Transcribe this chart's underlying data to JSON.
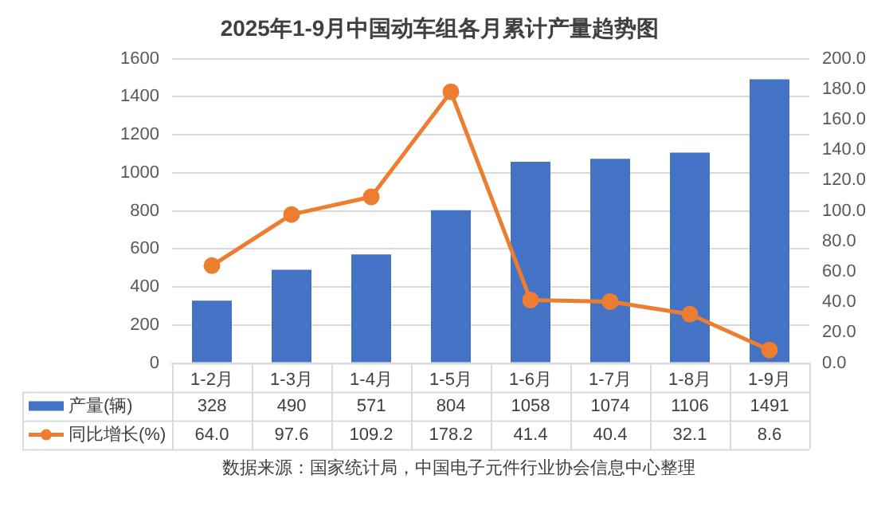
{
  "chart_data": {
    "type": "bar",
    "title": "2025年1-9月中国动车组各月累计产量趋势图",
    "categories": [
      "1-2月",
      "1-3月",
      "1-4月",
      "1-5月",
      "1-6月",
      "1-7月",
      "1-8月",
      "1-9月"
    ],
    "series": [
      {
        "name": "产量(辆)",
        "color": "#4472c4",
        "values": [
          328,
          490,
          571,
          804,
          1058,
          1074,
          1106,
          1491
        ],
        "value_labels": [
          "328",
          "490",
          "571",
          "804",
          "1058",
          "1074",
          "1106",
          "1491"
        ]
      },
      {
        "name": "同比增长(%)",
        "type": "line",
        "axis": "y2",
        "color": "#ed7d31",
        "marker": "circle",
        "values": [
          64.0,
          97.6,
          109.2,
          178.2,
          41.4,
          40.4,
          32.1,
          8.6
        ],
        "value_labels": [
          "64.0",
          "97.6",
          "109.2",
          "178.2",
          "41.4",
          "40.4",
          "32.1",
          "8.6"
        ]
      }
    ],
    "ylim": [
      0,
      1600
    ],
    "yticks": [
      0,
      200,
      400,
      600,
      800,
      1000,
      1200,
      1400,
      1600
    ],
    "y2lim": [
      0,
      200
    ],
    "y2ticks": [
      {
        "value": 0,
        "label": "0.0"
      },
      {
        "value": 20,
        "label": "20.0"
      },
      {
        "value": 40,
        "label": "40.0"
      },
      {
        "value": 60,
        "label": "60.0"
      },
      {
        "value": 80,
        "label": "80.0"
      },
      {
        "value": 100,
        "label": "100.0"
      },
      {
        "value": 120,
        "label": "120.0"
      },
      {
        "value": 140,
        "label": "140.0"
      },
      {
        "value": 160,
        "label": "160.0"
      },
      {
        "value": 180,
        "label": "180.0"
      },
      {
        "value": 200,
        "label": "200.0"
      }
    ],
    "grid": "y",
    "legend": "bottom",
    "annotations": [
      "数据来源：国家统计局，中国电子元件行业协会信息中心整理"
    ]
  }
}
